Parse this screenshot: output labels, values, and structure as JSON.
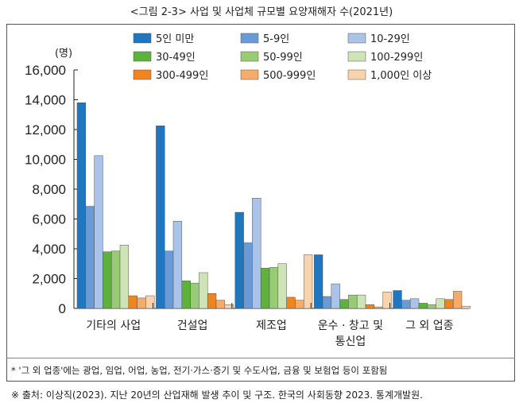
{
  "title": "<그림 2-3> 사업 및 사업체 규모별 요양재해자 수(2021년)",
  "note": "* '그 외 업종'에는 광업, 임업, 어업, 농업, 전기·가스·증기 및 수도사업, 금융 및 보험업 등이 포함됨",
  "source": "※ 출처: 이상직(2023). 지난 20년의 산업재해 발생 추이 및 구조. 한국의 사회동향 2023. 통계개발원.",
  "chart_data": {
    "type": "bar",
    "ylabel": "(명)",
    "ylim": [
      0,
      16000
    ],
    "yticks": [
      "0",
      "2,000",
      "4,000",
      "6,000",
      "8,000",
      "10,000",
      "12,000",
      "14,000",
      "16,000"
    ],
    "categories": [
      "기타의 사업",
      "건설업",
      "제조업",
      "운수 · 창고 및|통신업",
      "그 외 업종"
    ],
    "legend_position": "top-right",
    "series": [
      {
        "name": "5인 미만",
        "color": "#1f77c0",
        "values": [
          13800,
          12250,
          6450,
          3600,
          1200
        ]
      },
      {
        "name": "5-9인",
        "color": "#6a9bd6",
        "values": [
          6850,
          3850,
          4400,
          800,
          550
        ]
      },
      {
        "name": "10-29인",
        "color": "#a9c4e8",
        "values": [
          10250,
          5850,
          7400,
          1650,
          650
        ]
      },
      {
        "name": "30-49인",
        "color": "#5cb23a",
        "values": [
          3800,
          1850,
          2700,
          600,
          350
        ]
      },
      {
        "name": "50-99인",
        "color": "#98cc74",
        "values": [
          3850,
          1700,
          2750,
          900,
          250
        ]
      },
      {
        "name": "100-299인",
        "color": "#cfe4b6",
        "values": [
          4250,
          2400,
          3000,
          900,
          650
        ]
      },
      {
        "name": "300-499인",
        "color": "#f0841e",
        "values": [
          850,
          1000,
          750,
          250,
          600
        ]
      },
      {
        "name": "500-999인",
        "color": "#f5ab6a",
        "values": [
          700,
          550,
          550,
          100,
          1150
        ]
      },
      {
        "name": "1,000인 이상",
        "color": "#f9d3ab",
        "values": [
          850,
          250,
          3600,
          1100,
          150
        ]
      }
    ]
  }
}
